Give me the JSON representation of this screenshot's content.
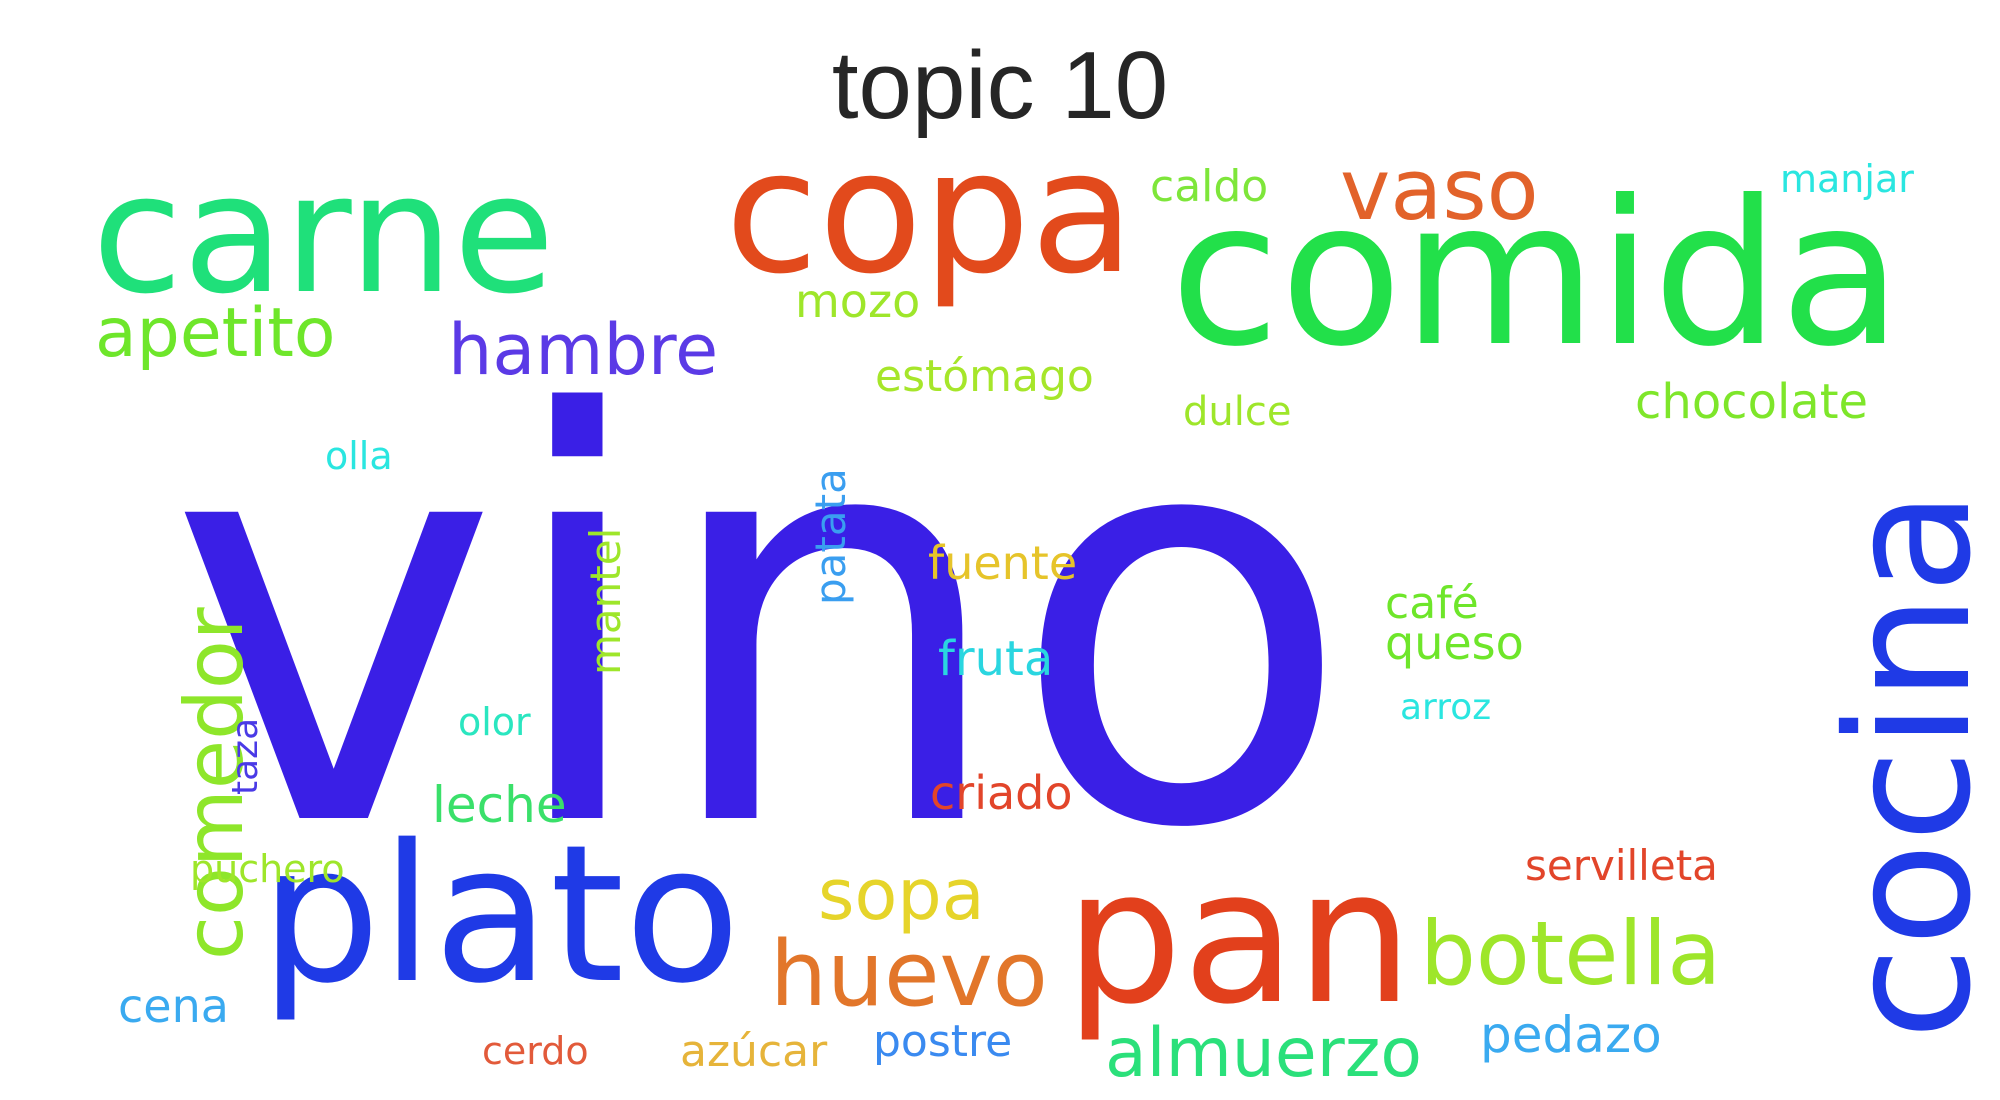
{
  "title": "topic 10",
  "words": [
    {
      "id": "vino",
      "text": "vino",
      "color": "#3a1fe6",
      "orientation": "horizontal"
    },
    {
      "id": "comida",
      "text": "comida",
      "color": "#22e04a",
      "orientation": "horizontal"
    },
    {
      "id": "carne",
      "text": "carne",
      "color": "#1fe07a",
      "orientation": "horizontal"
    },
    {
      "id": "copa",
      "text": "copa",
      "color": "#e24a1c",
      "orientation": "horizontal"
    },
    {
      "id": "pan",
      "text": "pan",
      "color": "#e2401c",
      "orientation": "horizontal"
    },
    {
      "id": "plato",
      "text": "plato",
      "color": "#1f3ae6",
      "orientation": "horizontal"
    },
    {
      "id": "cocina",
      "text": "cocina",
      "color": "#1f3ae6",
      "orientation": "vertical"
    },
    {
      "id": "comedor",
      "text": "comedor",
      "color": "#8ee62a",
      "orientation": "vertical"
    },
    {
      "id": "vaso",
      "text": "vaso",
      "color": "#e2622a",
      "orientation": "horizontal"
    },
    {
      "id": "hambre",
      "text": "hambre",
      "color": "#5b3ae6",
      "orientation": "horizontal"
    },
    {
      "id": "apetito",
      "text": "apetito",
      "color": "#6ee62a",
      "orientation": "horizontal"
    },
    {
      "id": "botella",
      "text": "botella",
      "color": "#9ee62a",
      "orientation": "horizontal"
    },
    {
      "id": "huevo",
      "text": "huevo",
      "color": "#e2762a",
      "orientation": "horizontal"
    },
    {
      "id": "almuerzo",
      "text": "almuerzo",
      "color": "#2ae07a",
      "orientation": "horizontal"
    },
    {
      "id": "sopa",
      "text": "sopa",
      "color": "#e6d42a",
      "orientation": "horizontal"
    },
    {
      "id": "pedazo",
      "text": "pedazo",
      "color": "#3aaaf0",
      "orientation": "horizontal"
    },
    {
      "id": "servilleta",
      "text": "servilleta",
      "color": "#e2452a",
      "orientation": "horizontal"
    },
    {
      "id": "chocolate",
      "text": "chocolate",
      "color": "#7ee62a",
      "orientation": "horizontal"
    },
    {
      "id": "caldo",
      "text": "caldo",
      "color": "#7ee63a",
      "orientation": "horizontal"
    },
    {
      "id": "manjar",
      "text": "manjar",
      "color": "#2ae6e0",
      "orientation": "horizontal"
    },
    {
      "id": "mozo",
      "text": "mozo",
      "color": "#9ee62a",
      "orientation": "horizontal"
    },
    {
      "id": "estomago",
      "text": "estómago",
      "color": "#a6e62a",
      "orientation": "horizontal"
    },
    {
      "id": "dulce",
      "text": "dulce",
      "color": "#9ee62a",
      "orientation": "horizontal"
    },
    {
      "id": "olla",
      "text": "olla",
      "color": "#2ae6e0",
      "orientation": "horizontal"
    },
    {
      "id": "patata",
      "text": "patata",
      "color": "#3a9ef0",
      "orientation": "vertical"
    },
    {
      "id": "mantel",
      "text": "mantel",
      "color": "#9ee62a",
      "orientation": "vertical"
    },
    {
      "id": "fuente",
      "text": "fuente",
      "color": "#e6c42a",
      "orientation": "horizontal"
    },
    {
      "id": "cafe",
      "text": "café",
      "color": "#6ee62a",
      "orientation": "horizontal"
    },
    {
      "id": "queso",
      "text": "queso",
      "color": "#6ee62a",
      "orientation": "horizontal"
    },
    {
      "id": "fruta",
      "text": "fruta",
      "color": "#2ad6e0",
      "orientation": "horizontal"
    },
    {
      "id": "arroz",
      "text": "arroz",
      "color": "#2ae6e0",
      "orientation": "horizontal"
    },
    {
      "id": "olor",
      "text": "olor",
      "color": "#2ae6c0",
      "orientation": "horizontal"
    },
    {
      "id": "taza",
      "text": "taza",
      "color": "#4a3ae6",
      "orientation": "vertical"
    },
    {
      "id": "leche",
      "text": "leche",
      "color": "#3ae06a",
      "orientation": "horizontal"
    },
    {
      "id": "criado",
      "text": "criado",
      "color": "#e2452a",
      "orientation": "horizontal"
    },
    {
      "id": "puchero",
      "text": "puchero",
      "color": "#9ee62a",
      "orientation": "horizontal"
    },
    {
      "id": "cena",
      "text": "cena",
      "color": "#3aaaf0",
      "orientation": "horizontal"
    },
    {
      "id": "cerdo",
      "text": "cerdo",
      "color": "#e25a3a",
      "orientation": "horizontal"
    },
    {
      "id": "azucar",
      "text": "azúcar",
      "color": "#e6b43a",
      "orientation": "horizontal"
    },
    {
      "id": "postre",
      "text": "postre",
      "color": "#3a8af0",
      "orientation": "horizontal"
    }
  ]
}
